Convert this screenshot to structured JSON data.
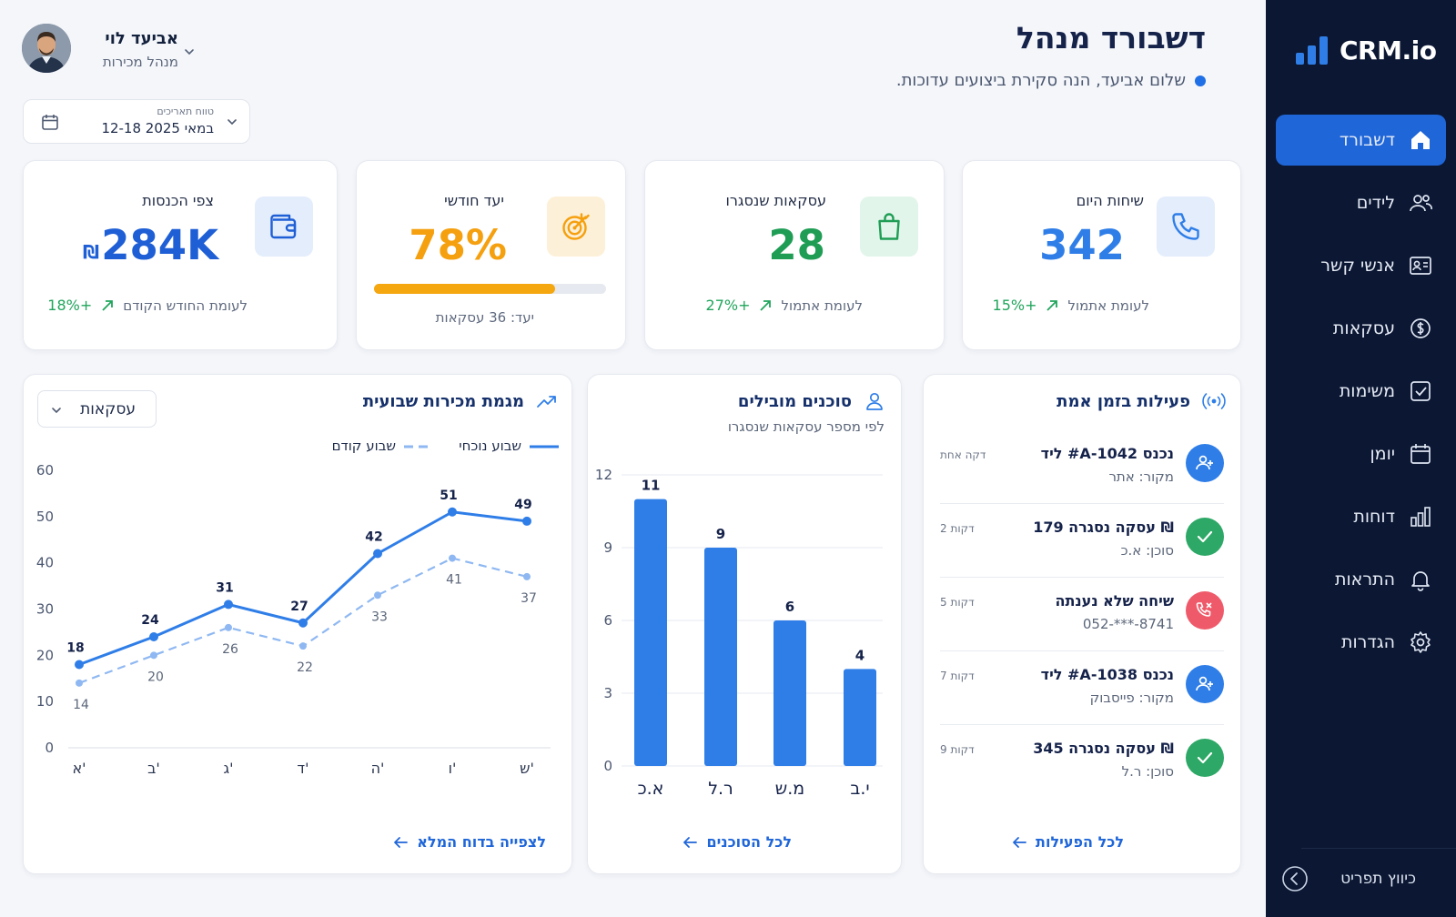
{
  "app": {
    "logo_text": "CRM.io"
  },
  "sidebar": {
    "items": [
      {
        "label": "דשבורד",
        "icon": "home-icon",
        "active": true
      },
      {
        "label": "לידים",
        "icon": "users-icon"
      },
      {
        "label": "אנשי קשר",
        "icon": "contact-card-icon"
      },
      {
        "label": "עסקאות",
        "icon": "dollar-circle-icon"
      },
      {
        "label": "משימות",
        "icon": "checkbox-icon"
      },
      {
        "label": "יומן",
        "icon": "calendar-icon"
      },
      {
        "label": "דוחות",
        "icon": "bar-chart-icon"
      },
      {
        "label": "התראות",
        "icon": "bell-icon"
      },
      {
        "label": "הגדרות",
        "icon": "gear-icon"
      }
    ],
    "collapse_label": "כיווץ תפריט"
  },
  "header": {
    "title": "דשבורד מנהל",
    "subtitle": "שלום אביעד, הנה סקירת ביצועים עדוכות.",
    "user": {
      "name": "אביעד לוי",
      "role": "מנהל מכירות"
    },
    "date_range": {
      "label": "טווח תאריכים",
      "value": "12-18 במאי 2025"
    }
  },
  "kpis": {
    "calls": {
      "label": "שיחות היום",
      "value": "342",
      "change": "+15%",
      "compare": "לעומת אתמול",
      "color": "#2f7ee8"
    },
    "deals": {
      "label": "עסקאות שנסגרו",
      "value": "28",
      "change": "+27%",
      "compare": "לעומת אתמול",
      "color": "#1f9d55"
    },
    "goal": {
      "label": "יעד חודשי",
      "value": "78%",
      "progress": 0.78,
      "target_text": "יעד: 36 עסקאות",
      "color": "#f5a00f"
    },
    "revenue": {
      "label": "צפי הכנסות",
      "value": "284K",
      "currency": "₪",
      "change": "+18%",
      "compare": "לעומת החודש הקודם",
      "color": "#1f5fd6"
    }
  },
  "sales_trend": {
    "title": "מגמת מכירות שבועית",
    "dropdown": "עסקאות",
    "legend_current": "שבוע נוכחי",
    "legend_previous": "שבוע קודם",
    "link": "לצפייה בדוח המלא"
  },
  "top_agents": {
    "title": "סוכנים מובילים",
    "subtitle": "לפי מספר עסקאות שנסגרו",
    "link": "לכל הסוכנים"
  },
  "activity": {
    "title": "פעילות בזמן אמת",
    "link": "לכל הפעילות",
    "items": [
      {
        "title": "ליד #A-1042 נכנס",
        "sub": "מקור: אתר",
        "time": "דקה אחת",
        "icon": "user-plus-icon",
        "color": "#2f7ee8"
      },
      {
        "title": "עסקה נסגרה 179 ₪",
        "sub": "סוכן: א.כ",
        "time": "2 דקות",
        "icon": "check-icon",
        "color": "#2ea866"
      },
      {
        "title": "שיחה שלא נענתה",
        "sub": "052-***-8741",
        "time": "5 דקות",
        "icon": "missed-call-icon",
        "color": "#ef5a6a"
      },
      {
        "title": "ליד #A-1038 נכנס",
        "sub": "מקור: פייסבוק",
        "time": "7 דקות",
        "icon": "user-plus-icon",
        "color": "#2f7ee8"
      },
      {
        "title": "עסקה נסגרה 345 ₪",
        "sub": "סוכן: ר.ל",
        "time": "9 דקות",
        "icon": "check-icon",
        "color": "#2ea866"
      }
    ]
  },
  "chart_data": [
    {
      "type": "line",
      "title": "מגמת מכירות שבועית",
      "categories": [
        "א'",
        "ב'",
        "ג'",
        "ד'",
        "ה'",
        "ו'",
        "ש'"
      ],
      "series": [
        {
          "name": "שבוע נוכחי",
          "values": [
            18,
            24,
            31,
            27,
            42,
            51,
            49
          ],
          "color": "#2f7ee8",
          "style": "solid"
        },
        {
          "name": "שבוע קודם",
          "values": [
            14,
            20,
            26,
            22,
            33,
            41,
            37
          ],
          "color": "#8fb8f2",
          "style": "dashed"
        }
      ],
      "yticks": [
        "0",
        "10",
        "20",
        "30",
        "40",
        "50",
        "60"
      ],
      "ylim": [
        0,
        60
      ],
      "grid": false,
      "legend": "top"
    },
    {
      "type": "bar",
      "title": "סוכנים מובילים",
      "categories": [
        "א.כ",
        "ר.ל",
        "מ.ש",
        "י.ב"
      ],
      "values": [
        11,
        9,
        6,
        4
      ],
      "yticks": [
        "0",
        "3",
        "6",
        "9",
        "12"
      ],
      "ylim": [
        0,
        12
      ],
      "grid": true,
      "color": "#2f7ee8"
    }
  ]
}
